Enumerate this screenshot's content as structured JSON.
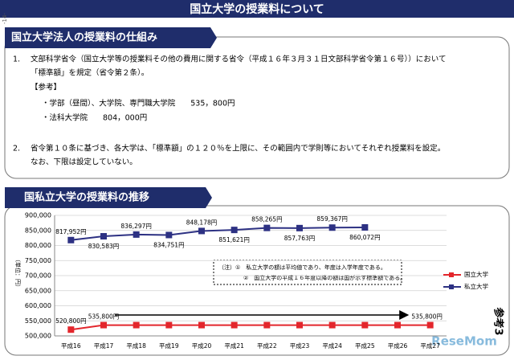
{
  "header": {
    "title": "国立大学の授業料について",
    "page": "-14-"
  },
  "section1": {
    "title": "国立大学法人の授業料の仕組み",
    "items": [
      {
        "num": "1.",
        "lines": [
          "文部科学省令（国立大学等の授業料その他の費用に関する省令（平成１６年３月３１日文部科学省令第１６号））において",
          "「標準額」を規定（省令第２条）。"
        ]
      },
      {
        "num": "2.",
        "lines": [
          "省令第１０条に基づき、各大学は、「標準額」の１２０％を上限に、その範囲内で学則等においてそれぞれ授業料を設定。",
          "なお、下限は設定していない。"
        ]
      }
    ],
    "reference": {
      "title": "【参考】",
      "lines": [
        "・学部（昼間）、大学院、専門職大学院　　535，800円",
        "・法科大学院　　804，000円"
      ]
    }
  },
  "section2_title": "国私立大学の授業料の推移",
  "chart_data": {
    "type": "line",
    "ylabel": "（単位：円）",
    "categories": [
      "平成16",
      "平成17",
      "平成18",
      "平成19",
      "平成20",
      "平成21",
      "平成22",
      "平成23",
      "平成24",
      "平成25",
      "平成26",
      "平成27"
    ],
    "series": [
      {
        "name": "国立大学",
        "color": "#e3262c",
        "marker": "square",
        "values": [
          520800,
          535800,
          535800,
          535800,
          535800,
          535800,
          535800,
          535800,
          535800,
          535800,
          535800,
          535800
        ],
        "value_labels": [
          "520,800円",
          "535,800円",
          null,
          null,
          null,
          null,
          null,
          null,
          null,
          null,
          null,
          "535,800円"
        ]
      },
      {
        "name": "私立大学",
        "color": "#2d3183",
        "marker": "square",
        "values": [
          817952,
          830583,
          836297,
          834751,
          848178,
          851621,
          858265,
          857763,
          859367,
          860072,
          null,
          null
        ],
        "value_labels": [
          "817,952円",
          "830,583円",
          "836,297円",
          "834,751円",
          "848,178円",
          "851,621円",
          "858,265円",
          "857,763円",
          "859,367円",
          "860,072円",
          null,
          null
        ]
      }
    ],
    "ylim": [
      500000,
      900000
    ],
    "yticks": [
      {
        "value": 500000,
        "label": "500,000"
      },
      {
        "value": 550000,
        "label": "550,000"
      },
      {
        "value": 600000,
        "label": "600,000"
      },
      {
        "value": 650000,
        "label": "650,000"
      },
      {
        "value": 700000,
        "label": "700,000"
      },
      {
        "value": 750000,
        "label": "750,000"
      },
      {
        "value": 800000,
        "label": "800,000"
      },
      {
        "value": 850000,
        "label": "850,000"
      },
      {
        "value": 900000,
        "label": "900,000"
      }
    ],
    "grid": true,
    "legend": "right",
    "notes": [
      "（注）①　私立大学の額は平均値であり、年度は入学年度である。",
      "②　国立大学の平成１６年度以降の額は国が示す標準額である。"
    ]
  },
  "stamp": "参考3",
  "watermark": "ReseMom"
}
